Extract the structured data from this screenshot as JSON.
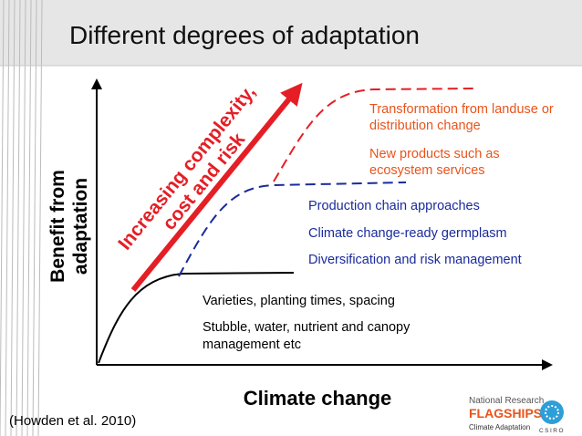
{
  "header": {
    "title": "Different degrees of adaptation"
  },
  "y_axis_label": [
    "Benefit from",
    "adaptation"
  ],
  "x_axis_label": "Climate change",
  "arrow_label": [
    "Increasing complexity,",
    "cost and risk"
  ],
  "transformational": [
    [
      "Transformation from landuse or",
      "distribution change"
    ],
    [
      "New products such as",
      "ecosystem services"
    ]
  ],
  "systems": [
    "Production chain approaches",
    "Climate change-ready germplasm",
    "Diversification and risk management"
  ],
  "incremental": [
    [
      "Varieties, planting times, spacing"
    ],
    [
      "Stubble, water, nutrient and canopy",
      "management etc"
    ]
  ],
  "citation": "(Howden et al. 2010)",
  "logo": {
    "org": "National Research",
    "brand": "FLAGSHIPS",
    "theme": "Climate Adaptation",
    "csiro": "CSIRO"
  }
}
